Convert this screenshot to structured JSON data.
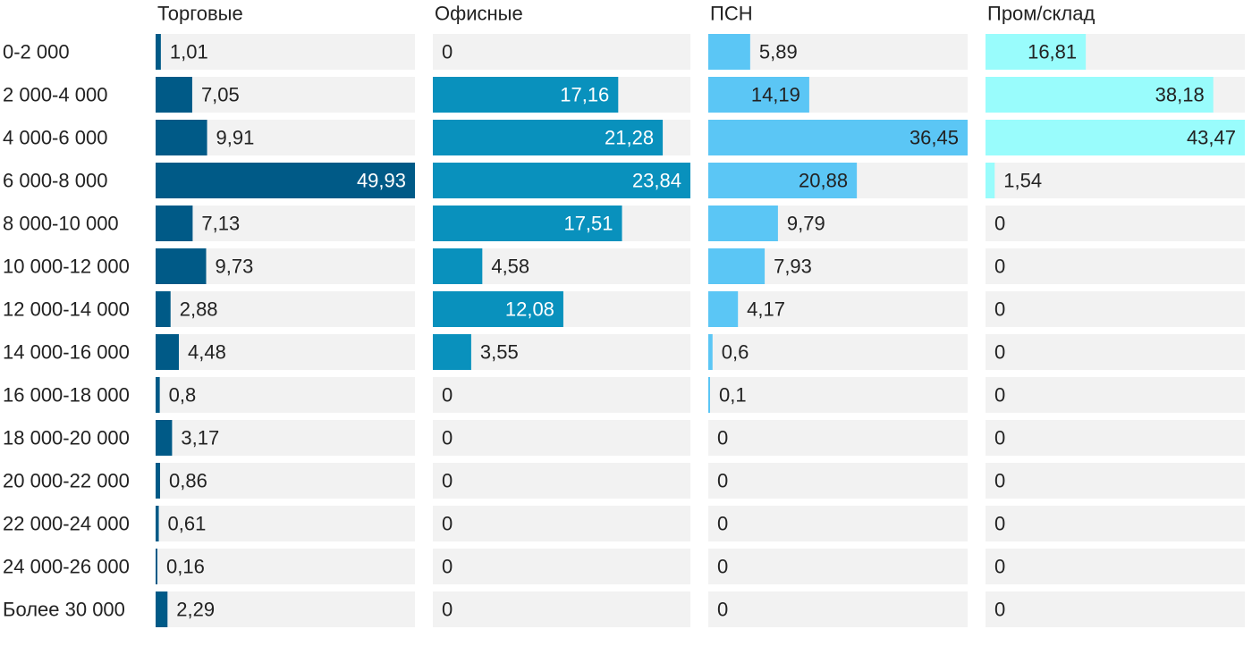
{
  "chart_data": {
    "type": "bar",
    "orientation": "horizontal",
    "layout": "small-multiples",
    "categories": [
      "0-2 000",
      "2 000-4 000",
      "4 000-6 000",
      "6 000-8 000",
      "8 000-10 000",
      "10 000-12 000",
      "12 000-14 000",
      "14 000-16 000",
      "16 000-18 000",
      "18 000-20 000",
      "20 000-22 000",
      "22 000-24 000",
      "24 000-26 000",
      "Более 30 000"
    ],
    "series": [
      {
        "name": "Торговые",
        "color": "#005a87",
        "values": [
          1.01,
          7.05,
          9.91,
          49.93,
          7.13,
          9.73,
          2.88,
          4.48,
          0.8,
          3.17,
          0.86,
          0.61,
          0.16,
          2.29
        ],
        "labels": [
          "1,01",
          "7,05",
          "9,91",
          "49,93",
          "7,13",
          "9,73",
          "2,88",
          "4,48",
          "0,8",
          "3,17",
          "0,86",
          "0,61",
          "0,16",
          "2,29"
        ]
      },
      {
        "name": "Офисные",
        "color": "#0991bd",
        "values": [
          0,
          17.16,
          21.28,
          23.84,
          17.51,
          4.58,
          12.08,
          3.55,
          0,
          0,
          0,
          0,
          0,
          0
        ],
        "labels": [
          "0",
          "17,16",
          "21,28",
          "23,84",
          "17,51",
          "4,58",
          "12,08",
          "3,55",
          "0",
          "0",
          "0",
          "0",
          "0",
          "0"
        ]
      },
      {
        "name": "ПСН",
        "color": "#5bc6f5",
        "values": [
          5.89,
          14.19,
          36.45,
          20.88,
          9.79,
          7.93,
          4.17,
          0.6,
          0.1,
          0,
          0,
          0,
          0,
          0
        ],
        "labels": [
          "5,89",
          "14,19",
          "36,45",
          "20,88",
          "9,79",
          "7,93",
          "4,17",
          "0,6",
          "0,1",
          "0",
          "0",
          "0",
          "0",
          "0"
        ]
      },
      {
        "name": "Пром/склад",
        "color": "#99fcfc",
        "values": [
          16.81,
          38.18,
          43.47,
          1.54,
          0,
          0,
          0,
          0,
          0,
          0,
          0,
          0,
          0,
          0
        ],
        "labels": [
          "16,81",
          "38,18",
          "43,47",
          "1,54",
          "0",
          "0",
          "0",
          "0",
          "0",
          "0",
          "0",
          "0",
          "0",
          "0"
        ]
      }
    ],
    "track_color": "#f2f2f2",
    "text_color": "#222222",
    "label_light_color": "#ffffff"
  }
}
